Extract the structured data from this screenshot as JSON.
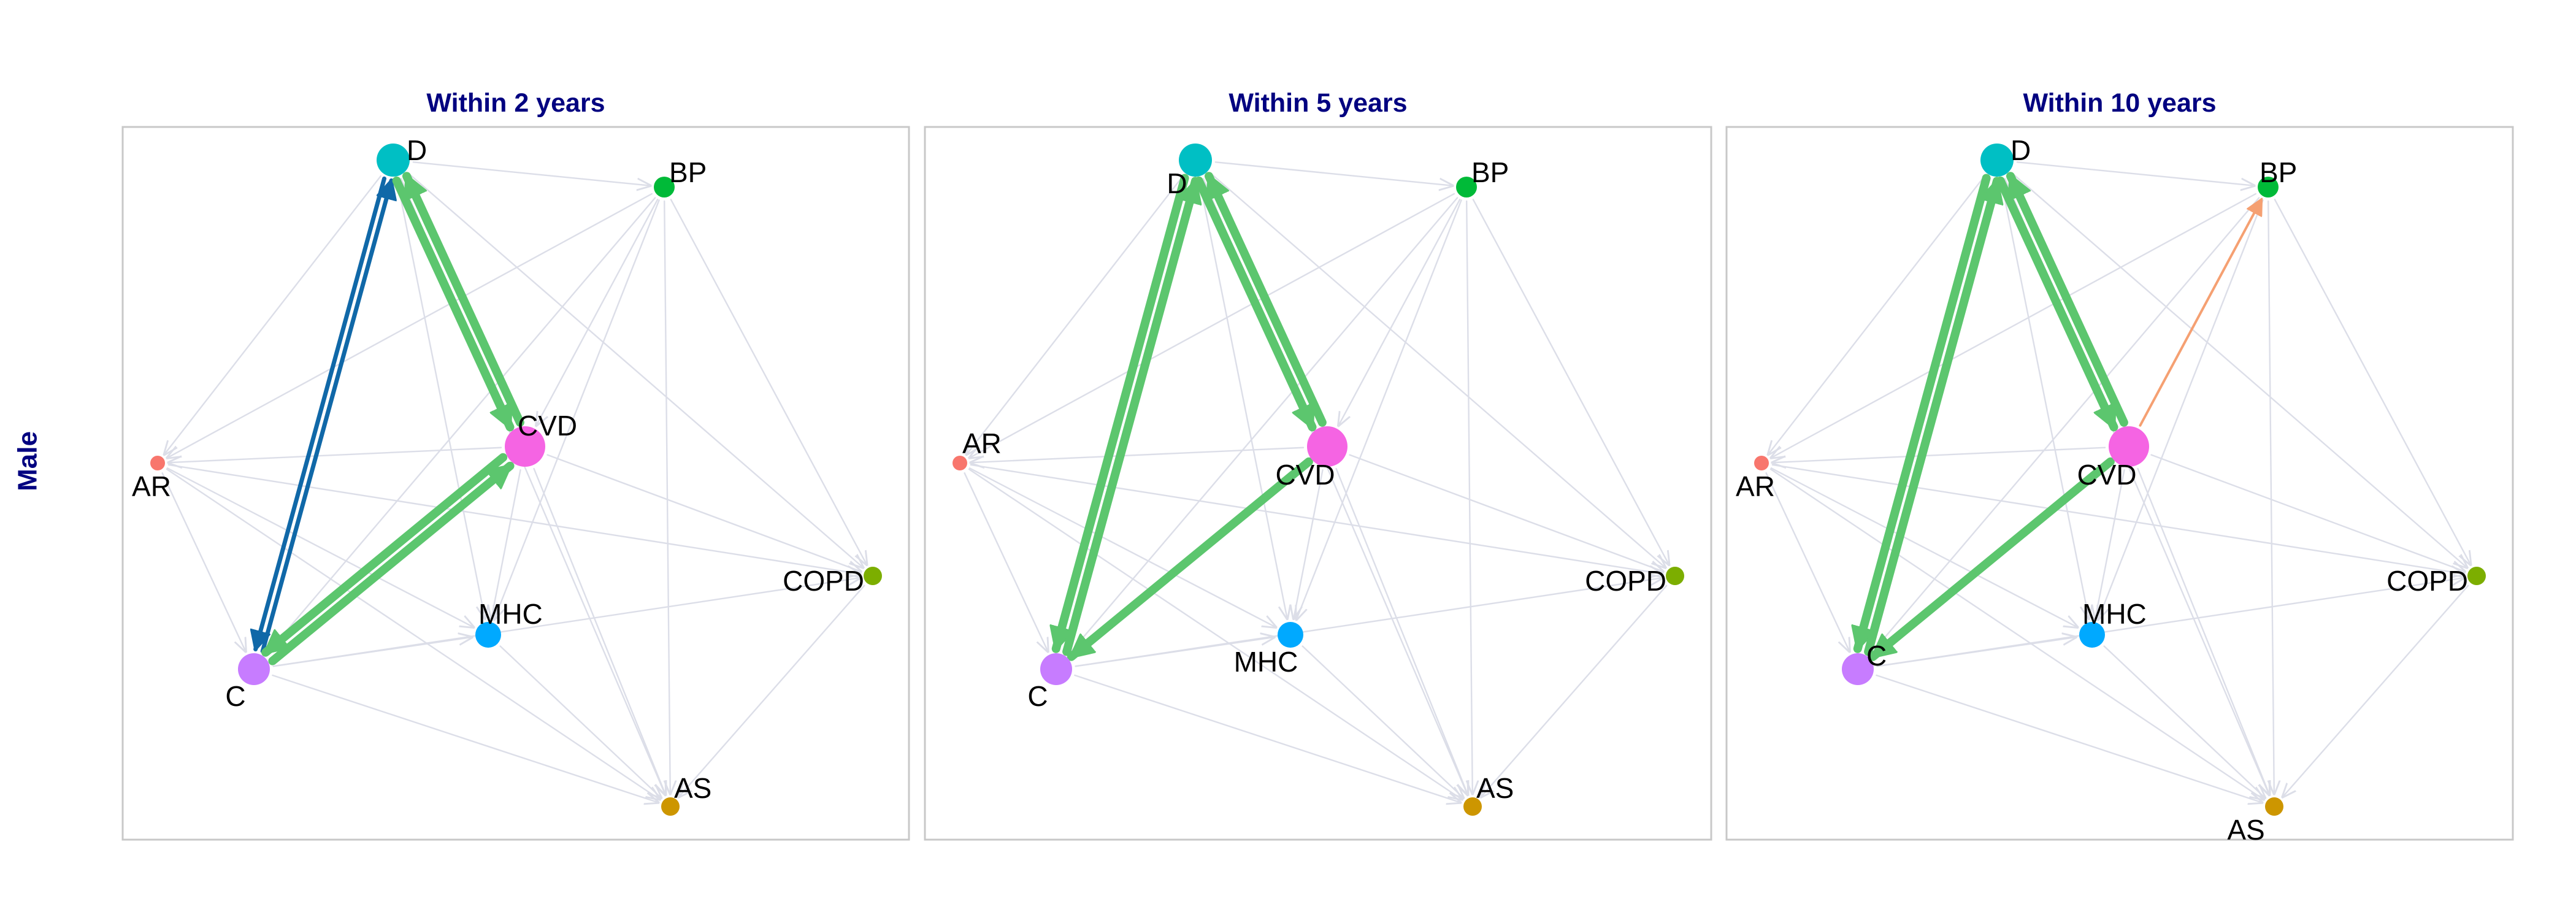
{
  "row_label": "Male",
  "panels": [
    {
      "title": "Within 2 years",
      "edges": [
        {
          "from": "D",
          "to": "CVD",
          "kind": "green"
        },
        {
          "from": "CVD",
          "to": "D",
          "kind": "green"
        },
        {
          "from": "C",
          "to": "CVD",
          "kind": "green"
        },
        {
          "from": "CVD",
          "to": "C",
          "kind": "green"
        },
        {
          "from": "C",
          "to": "D",
          "kind": "blue"
        },
        {
          "from": "D",
          "to": "C",
          "kind": "blue"
        },
        {
          "from": "D",
          "to": "BP",
          "kind": "grey"
        },
        {
          "from": "D",
          "to": "AR",
          "kind": "grey"
        },
        {
          "from": "D",
          "to": "MHC",
          "kind": "grey"
        },
        {
          "from": "D",
          "to": "COPD",
          "kind": "grey"
        },
        {
          "from": "D",
          "to": "AS",
          "kind": "grey"
        },
        {
          "from": "BP",
          "to": "AR",
          "kind": "grey"
        },
        {
          "from": "BP",
          "to": "C",
          "kind": "grey"
        },
        {
          "from": "BP",
          "to": "MHC",
          "kind": "grey"
        },
        {
          "from": "BP",
          "to": "COPD",
          "kind": "grey"
        },
        {
          "from": "BP",
          "to": "AS",
          "kind": "grey"
        },
        {
          "from": "BP",
          "to": "CVD",
          "kind": "grey"
        },
        {
          "from": "CVD",
          "to": "AR",
          "kind": "grey"
        },
        {
          "from": "CVD",
          "to": "MHC",
          "kind": "grey"
        },
        {
          "from": "CVD",
          "to": "COPD",
          "kind": "grey"
        },
        {
          "from": "CVD",
          "to": "AS",
          "kind": "grey"
        },
        {
          "from": "AR",
          "to": "C",
          "kind": "grey"
        },
        {
          "from": "AR",
          "to": "COPD",
          "kind": "grey"
        },
        {
          "from": "AR",
          "to": "AS",
          "kind": "grey"
        },
        {
          "from": "AR",
          "to": "MHC",
          "kind": "grey"
        },
        {
          "from": "C",
          "to": "MHC",
          "kind": "grey"
        },
        {
          "from": "C",
          "to": "AS",
          "kind": "grey"
        },
        {
          "from": "C",
          "to": "COPD",
          "kind": "grey"
        },
        {
          "from": "MHC",
          "to": "AS",
          "kind": "grey"
        },
        {
          "from": "COPD",
          "to": "AS",
          "kind": "grey"
        }
      ]
    },
    {
      "title": "Within 5 years",
      "edges": [
        {
          "from": "D",
          "to": "CVD",
          "kind": "green"
        },
        {
          "from": "CVD",
          "to": "D",
          "kind": "green"
        },
        {
          "from": "D",
          "to": "C",
          "kind": "green"
        },
        {
          "from": "C",
          "to": "D",
          "kind": "green"
        },
        {
          "from": "CVD",
          "to": "C",
          "kind": "green"
        },
        {
          "from": "D",
          "to": "BP",
          "kind": "grey"
        },
        {
          "from": "D",
          "to": "AR",
          "kind": "grey"
        },
        {
          "from": "D",
          "to": "MHC",
          "kind": "grey"
        },
        {
          "from": "D",
          "to": "COPD",
          "kind": "grey"
        },
        {
          "from": "D",
          "to": "AS",
          "kind": "grey"
        },
        {
          "from": "BP",
          "to": "AR",
          "kind": "grey"
        },
        {
          "from": "BP",
          "to": "C",
          "kind": "grey"
        },
        {
          "from": "BP",
          "to": "MHC",
          "kind": "grey"
        },
        {
          "from": "BP",
          "to": "COPD",
          "kind": "grey"
        },
        {
          "from": "BP",
          "to": "AS",
          "kind": "grey"
        },
        {
          "from": "BP",
          "to": "CVD",
          "kind": "grey"
        },
        {
          "from": "CVD",
          "to": "AR",
          "kind": "grey"
        },
        {
          "from": "CVD",
          "to": "MHC",
          "kind": "grey"
        },
        {
          "from": "CVD",
          "to": "COPD",
          "kind": "grey"
        },
        {
          "from": "CVD",
          "to": "AS",
          "kind": "grey"
        },
        {
          "from": "AR",
          "to": "C",
          "kind": "grey"
        },
        {
          "from": "AR",
          "to": "COPD",
          "kind": "grey"
        },
        {
          "from": "AR",
          "to": "AS",
          "kind": "grey"
        },
        {
          "from": "AR",
          "to": "MHC",
          "kind": "grey"
        },
        {
          "from": "C",
          "to": "MHC",
          "kind": "grey"
        },
        {
          "from": "C",
          "to": "AS",
          "kind": "grey"
        },
        {
          "from": "C",
          "to": "COPD",
          "kind": "grey"
        },
        {
          "from": "MHC",
          "to": "AS",
          "kind": "grey"
        },
        {
          "from": "COPD",
          "to": "AS",
          "kind": "grey"
        }
      ]
    },
    {
      "title": "Within 10 years",
      "edges": [
        {
          "from": "D",
          "to": "CVD",
          "kind": "green"
        },
        {
          "from": "CVD",
          "to": "D",
          "kind": "green"
        },
        {
          "from": "D",
          "to": "C",
          "kind": "green"
        },
        {
          "from": "C",
          "to": "D",
          "kind": "green"
        },
        {
          "from": "CVD",
          "to": "C",
          "kind": "green"
        },
        {
          "from": "CVD",
          "to": "BP",
          "kind": "orange"
        },
        {
          "from": "D",
          "to": "BP",
          "kind": "grey"
        },
        {
          "from": "D",
          "to": "AR",
          "kind": "grey"
        },
        {
          "from": "D",
          "to": "MHC",
          "kind": "grey"
        },
        {
          "from": "D",
          "to": "COPD",
          "kind": "grey"
        },
        {
          "from": "D",
          "to": "AS",
          "kind": "grey"
        },
        {
          "from": "BP",
          "to": "AR",
          "kind": "grey"
        },
        {
          "from": "BP",
          "to": "C",
          "kind": "grey"
        },
        {
          "from": "BP",
          "to": "MHC",
          "kind": "grey"
        },
        {
          "from": "BP",
          "to": "COPD",
          "kind": "grey"
        },
        {
          "from": "BP",
          "to": "AS",
          "kind": "grey"
        },
        {
          "from": "CVD",
          "to": "AR",
          "kind": "grey"
        },
        {
          "from": "CVD",
          "to": "MHC",
          "kind": "grey"
        },
        {
          "from": "CVD",
          "to": "COPD",
          "kind": "grey"
        },
        {
          "from": "CVD",
          "to": "AS",
          "kind": "grey"
        },
        {
          "from": "AR",
          "to": "C",
          "kind": "grey"
        },
        {
          "from": "AR",
          "to": "COPD",
          "kind": "grey"
        },
        {
          "from": "AR",
          "to": "AS",
          "kind": "grey"
        },
        {
          "from": "AR",
          "to": "MHC",
          "kind": "grey"
        },
        {
          "from": "C",
          "to": "MHC",
          "kind": "grey"
        },
        {
          "from": "C",
          "to": "AS",
          "kind": "grey"
        },
        {
          "from": "C",
          "to": "COPD",
          "kind": "grey"
        },
        {
          "from": "MHC",
          "to": "AS",
          "kind": "grey"
        },
        {
          "from": "COPD",
          "to": "AS",
          "kind": "grey"
        }
      ]
    }
  ],
  "nodes": [
    {
      "id": "D",
      "label": "D",
      "color": "#00bfc4"
    },
    {
      "id": "BP",
      "label": "BP",
      "color": "#00ba38"
    },
    {
      "id": "CVD",
      "label": "CVD",
      "color": "#f564e3"
    },
    {
      "id": "AR",
      "label": "AR",
      "color": "#f8766d"
    },
    {
      "id": "COPD",
      "label": "COPD",
      "color": "#7cae00"
    },
    {
      "id": "MHC",
      "label": "MHC",
      "color": "#00a9ff"
    },
    {
      "id": "C",
      "label": "C",
      "color": "#c77cff"
    },
    {
      "id": "AS",
      "label": "AS",
      "color": "#cd9600"
    }
  ],
  "colors": {
    "title": "#000080",
    "green": "#5cc66e",
    "blue": "#1068a8",
    "orange": "#f5a072",
    "grey": "#dcdee8",
    "panel_border": "#c8c8c8"
  }
}
